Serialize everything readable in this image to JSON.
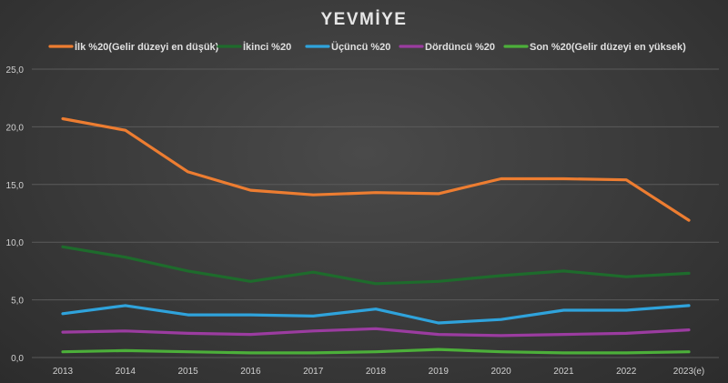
{
  "chart_data": {
    "type": "line",
    "title": "YEVMİYE",
    "xlabel": "",
    "ylabel": "",
    "categories": [
      "2013",
      "2014",
      "2015",
      "2016",
      "2017",
      "2018",
      "2019",
      "2020",
      "2021",
      "2022",
      "2023(e)"
    ],
    "yticks": [
      "0,0",
      "5,0",
      "10,0",
      "15,0",
      "20,0",
      "25,0"
    ],
    "ylim": [
      0,
      25
    ],
    "grid": true,
    "legend_position": "top",
    "series": [
      {
        "name": "İlk %20(Gelir düzeyi en düşük)",
        "color": "#ed7d31",
        "values": [
          20.7,
          19.7,
          16.1,
          14.5,
          14.1,
          14.3,
          14.2,
          15.5,
          15.5,
          15.4,
          11.9
        ]
      },
      {
        "name": "İkinci %20",
        "color": "#1e6b2c",
        "values": [
          9.6,
          8.7,
          7.5,
          6.6,
          7.4,
          6.4,
          6.6,
          7.1,
          7.5,
          7.0,
          7.3
        ]
      },
      {
        "name": "Üçüncü %20",
        "color": "#2fa3dc",
        "values": [
          3.8,
          4.5,
          3.7,
          3.7,
          3.6,
          4.2,
          3.0,
          3.3,
          4.1,
          4.1,
          4.5
        ]
      },
      {
        "name": "Dördüncü %20",
        "color": "#9b3ca0",
        "values": [
          2.2,
          2.3,
          2.1,
          2.0,
          2.3,
          2.5,
          2.0,
          1.9,
          2.0,
          2.1,
          2.4
        ]
      },
      {
        "name": "Son %20(Gelir düzeyi en yüksek)",
        "color": "#4caf3a",
        "values": [
          0.5,
          0.6,
          0.5,
          0.4,
          0.4,
          0.5,
          0.7,
          0.5,
          0.4,
          0.4,
          0.5
        ]
      }
    ]
  }
}
